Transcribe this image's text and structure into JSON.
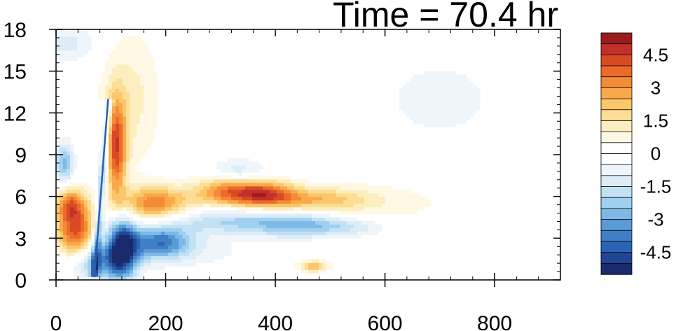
{
  "chart_data": {
    "type": "heatmap",
    "title": "Time = 70.4 hr",
    "xlabel": "",
    "ylabel": "",
    "xlim": [
      0,
      920
    ],
    "ylim": [
      0,
      18
    ],
    "x_ticks": [
      "0",
      "200",
      "400",
      "600",
      "800"
    ],
    "y_ticks": [
      "0",
      "3",
      "6",
      "9",
      "12",
      "15",
      "18"
    ],
    "colorbar": {
      "levels": [
        -5.5,
        -5,
        -4.5,
        -4,
        -3.5,
        -3,
        -2.5,
        -2,
        -1.5,
        -1,
        -0.5,
        0,
        0.5,
        1,
        1.5,
        2,
        2.5,
        3,
        3.5,
        4,
        4.5,
        5,
        5.5
      ],
      "labels": [
        "4.5",
        "3",
        "1.5",
        "0",
        "-1.5",
        "-3",
        "-4.5"
      ],
      "colors": [
        "#1a2a6c",
        "#1f4796",
        "#2d63b3",
        "#3f7fc7",
        "#5a9bd6",
        "#7db8e6",
        "#a0d0f0",
        "#c2e1f5",
        "#dcedf8",
        "#eef6fb",
        "#ffffff",
        "#ffffff",
        "#fff8e5",
        "#fdeec0",
        "#fcdd94",
        "#fbc76a",
        "#f9a94b",
        "#f48b35",
        "#ec6a2a",
        "#d94a24",
        "#c1302a",
        "#9a1b1e"
      ]
    },
    "features": [
      {
        "x": 35,
        "y": 3.5,
        "sx": 25,
        "sy": 1.6,
        "value": 4.2
      },
      {
        "x": 25,
        "y": 5.5,
        "sx": 18,
        "sy": 0.8,
        "value": 2.5
      },
      {
        "x": 15,
        "y": 8.4,
        "sx": 12,
        "sy": 1.0,
        "value": -2.8
      },
      {
        "x": 70,
        "y": 1.2,
        "sx": 40,
        "sy": 0.9,
        "value": -2.5
      },
      {
        "x": 120,
        "y": 2.4,
        "sx": 20,
        "sy": 1.6,
        "value": -5.0
      },
      {
        "x": 190,
        "y": 2.8,
        "sx": 40,
        "sy": 0.8,
        "value": -3.5
      },
      {
        "x": 110,
        "y": 9.5,
        "sx": 13,
        "sy": 2.5,
        "value": 4.0
      },
      {
        "x": 135,
        "y": 13.0,
        "sx": 40,
        "sy": 3.5,
        "value": 1.2
      },
      {
        "x": 180,
        "y": 5.5,
        "sx": 50,
        "sy": 0.9,
        "value": 3.4
      },
      {
        "x": 310,
        "y": 6.4,
        "sx": 40,
        "sy": 0.8,
        "value": 3.0
      },
      {
        "x": 380,
        "y": 6.2,
        "sx": 40,
        "sy": 0.7,
        "value": 3.6
      },
      {
        "x": 470,
        "y": 5.8,
        "sx": 70,
        "sy": 0.6,
        "value": 2.0
      },
      {
        "x": 300,
        "y": 4.3,
        "sx": 80,
        "sy": 0.7,
        "value": -2.0
      },
      {
        "x": 440,
        "y": 4.0,
        "sx": 60,
        "sy": 0.6,
        "value": -2.6
      },
      {
        "x": 540,
        "y": 3.8,
        "sx": 50,
        "sy": 0.5,
        "value": -1.2
      },
      {
        "x": 330,
        "y": 7.8,
        "sx": 35,
        "sy": 0.6,
        "value": -1.6
      },
      {
        "x": 470,
        "y": 1.0,
        "sx": 20,
        "sy": 0.3,
        "value": 2.4
      },
      {
        "x": 20,
        "y": 17.0,
        "sx": 40,
        "sy": 1.0,
        "value": -1.2
      },
      {
        "x": 200,
        "y": 2.0,
        "sx": 120,
        "sy": 0.8,
        "value": -0.8
      },
      {
        "x": 700,
        "y": 13.0,
        "sx": 90,
        "sy": 2.5,
        "value": -0.7
      },
      {
        "x": 580,
        "y": 5.5,
        "sx": 120,
        "sy": 1.2,
        "value": 0.7
      },
      {
        "x": 420,
        "y": 14.0,
        "sx": 70,
        "sy": 3.0,
        "value": -0.4
      }
    ],
    "front_line": {
      "x_start": 95,
      "y_start": 13.0,
      "x_end": 70,
      "y_end": 0.2
    }
  }
}
